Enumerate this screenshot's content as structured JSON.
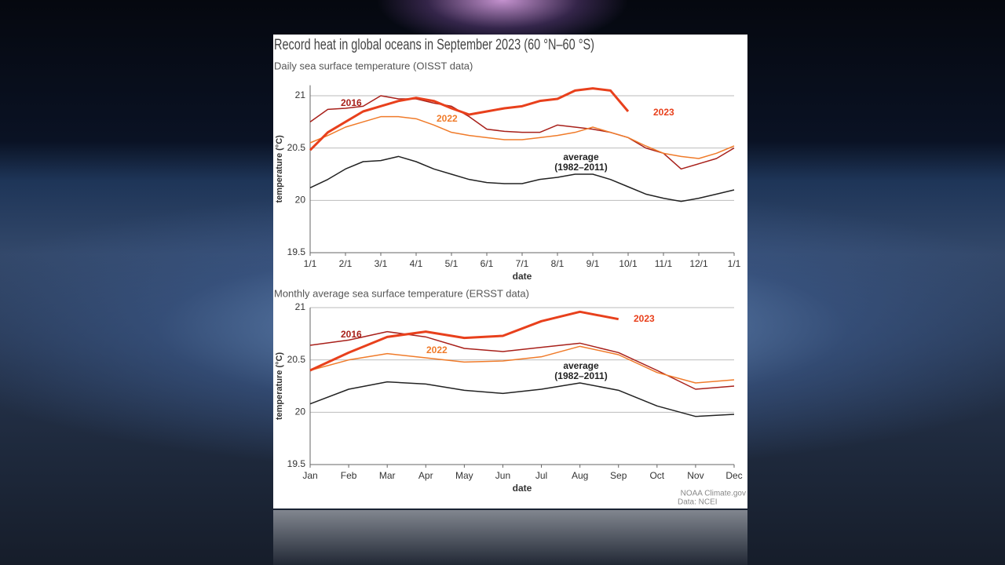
{
  "title": "Record heat in global oceans in September 2023 (60 °N–60 °S)",
  "credit": [
    "NOAA Climate.gov",
    "Data: NCEI"
  ],
  "chart_data": [
    {
      "type": "line",
      "subtitle": "Daily sea surface temperature (OISST data)",
      "x_label": "date",
      "y_label": "temperature (°C)",
      "categories": [
        "1/1",
        null,
        "2/1",
        null,
        "3/1",
        null,
        "4/1",
        null,
        "5/1",
        null,
        "6/1",
        null,
        "7/1",
        null,
        "8/1",
        null,
        "9/1",
        null,
        "10/1",
        null,
        "11/1",
        null,
        "12/1",
        null,
        "1/1"
      ],
      "ylim": [
        19.5,
        21.1
      ],
      "yticks": [
        19.5,
        20.0,
        20.5,
        21.0
      ],
      "grid": true,
      "series": [
        {
          "name": "2016",
          "color": "#a8201a",
          "values": [
            20.75,
            20.87,
            20.88,
            20.9,
            21.0,
            20.97,
            20.97,
            20.93,
            20.9,
            20.8,
            20.68,
            20.66,
            20.65,
            20.65,
            20.72,
            20.7,
            20.68,
            20.65,
            20.6,
            20.5,
            20.45,
            20.3,
            20.35,
            20.4,
            20.5
          ]
        },
        {
          "name": "2022",
          "color": "#f07b2a",
          "values": [
            20.55,
            20.62,
            20.7,
            20.75,
            20.8,
            20.8,
            20.78,
            20.72,
            20.65,
            20.62,
            20.6,
            20.58,
            20.58,
            20.6,
            20.62,
            20.65,
            20.7,
            20.65,
            20.6,
            20.52,
            20.45,
            20.42,
            20.4,
            20.45,
            20.52
          ]
        },
        {
          "name": "2023",
          "color": "#e8401c",
          "values": [
            20.48,
            20.65,
            20.75,
            20.85,
            20.9,
            20.95,
            20.98,
            20.95,
            20.88,
            20.82,
            20.85,
            20.88,
            20.9,
            20.95,
            20.97,
            21.05,
            21.07,
            21.05,
            20.85,
            null,
            null,
            null,
            null,
            null,
            null
          ]
        },
        {
          "name": "average (1982–2011)",
          "color": "#222222",
          "values": [
            20.12,
            20.2,
            20.3,
            20.37,
            20.38,
            20.42,
            20.37,
            20.3,
            20.25,
            20.2,
            20.17,
            20.16,
            20.16,
            20.2,
            20.22,
            20.25,
            20.25,
            20.2,
            20.13,
            20.06,
            20.02,
            19.99,
            20.02,
            20.06,
            20.1
          ]
        }
      ]
    },
    {
      "type": "line",
      "subtitle": "Monthly average sea surface temperature (ERSST data)",
      "x_label": "date",
      "y_label": "temperature (°C)",
      "categories": [
        "Jan",
        "Feb",
        "Mar",
        "Apr",
        "May",
        "Jun",
        "Jul",
        "Aug",
        "Sep",
        "Oct",
        "Nov",
        "Dec"
      ],
      "ylim": [
        19.5,
        21.0
      ],
      "yticks": [
        19.5,
        20.0,
        20.5,
        21.0
      ],
      "grid": true,
      "series": [
        {
          "name": "2016",
          "color": "#a8201a",
          "values": [
            20.64,
            20.69,
            20.77,
            20.72,
            20.61,
            20.58,
            20.62,
            20.66,
            20.57,
            20.4,
            20.22,
            20.25
          ]
        },
        {
          "name": "2022",
          "color": "#f07b2a",
          "values": [
            20.4,
            20.5,
            20.56,
            20.52,
            20.48,
            20.49,
            20.53,
            20.63,
            20.55,
            20.38,
            20.28,
            20.31
          ]
        },
        {
          "name": "2023",
          "color": "#e8401c",
          "values": [
            20.4,
            20.57,
            20.72,
            20.77,
            20.71,
            20.73,
            20.87,
            20.96,
            20.89,
            null,
            null,
            null
          ]
        },
        {
          "name": "average (1982–2011)",
          "color": "#222222",
          "values": [
            20.08,
            20.22,
            20.29,
            20.27,
            20.21,
            20.18,
            20.22,
            20.28,
            20.21,
            20.06,
            19.96,
            19.98
          ]
        }
      ]
    }
  ]
}
